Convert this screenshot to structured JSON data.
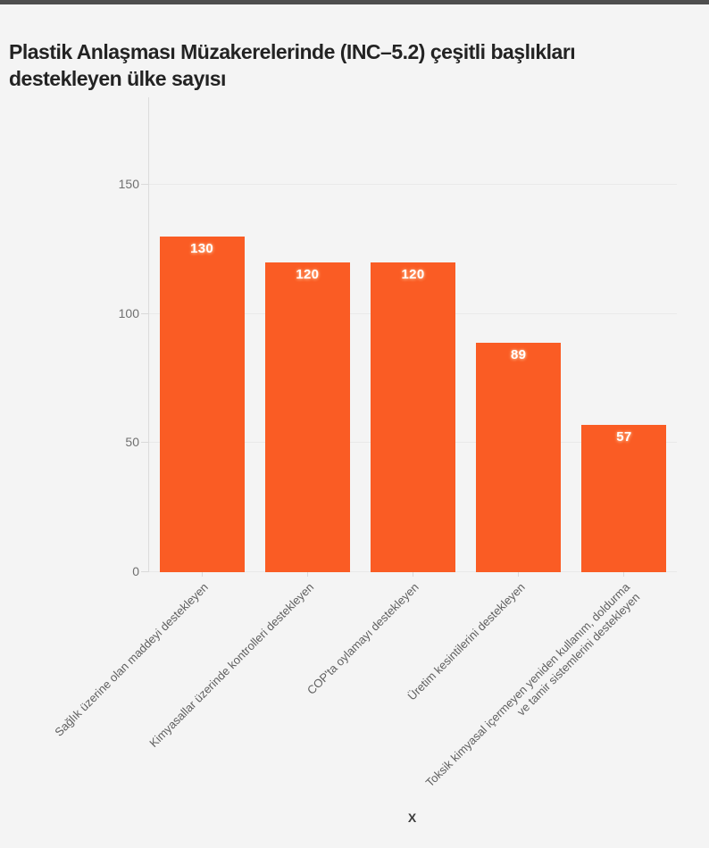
{
  "page": {
    "background_color": "#f4f4f4",
    "top_bar_color": "#4e4e4e"
  },
  "chart_data": {
    "type": "bar",
    "title": "Plastik Anlaşması Müzakerelerinde (INC–5.2) çeşitli başlıkları\ndestekleyen ülke sayısı",
    "xlabel": "X",
    "ylabel": "",
    "categories": [
      "Sağlık üzerine olan maddeyi destekleyen",
      "Kimyasallar üzerinde kontrolleri destekleyen",
      "COP'ta oylamayı destekleyen",
      "Üretim kesintilerini destekleyen",
      "Toksik kimyasal içermeyen yeniden kullanım, doldurma\nve tamir sistemlerini destekleyen"
    ],
    "values": [
      130,
      120,
      120,
      89,
      57
    ],
    "yticks": [
      0,
      50,
      100,
      150
    ],
    "ylim": [
      0,
      184
    ],
    "grid": true,
    "legend": "none",
    "bar_color": "#fa5c24",
    "bar_label_color": "#ffffff"
  }
}
